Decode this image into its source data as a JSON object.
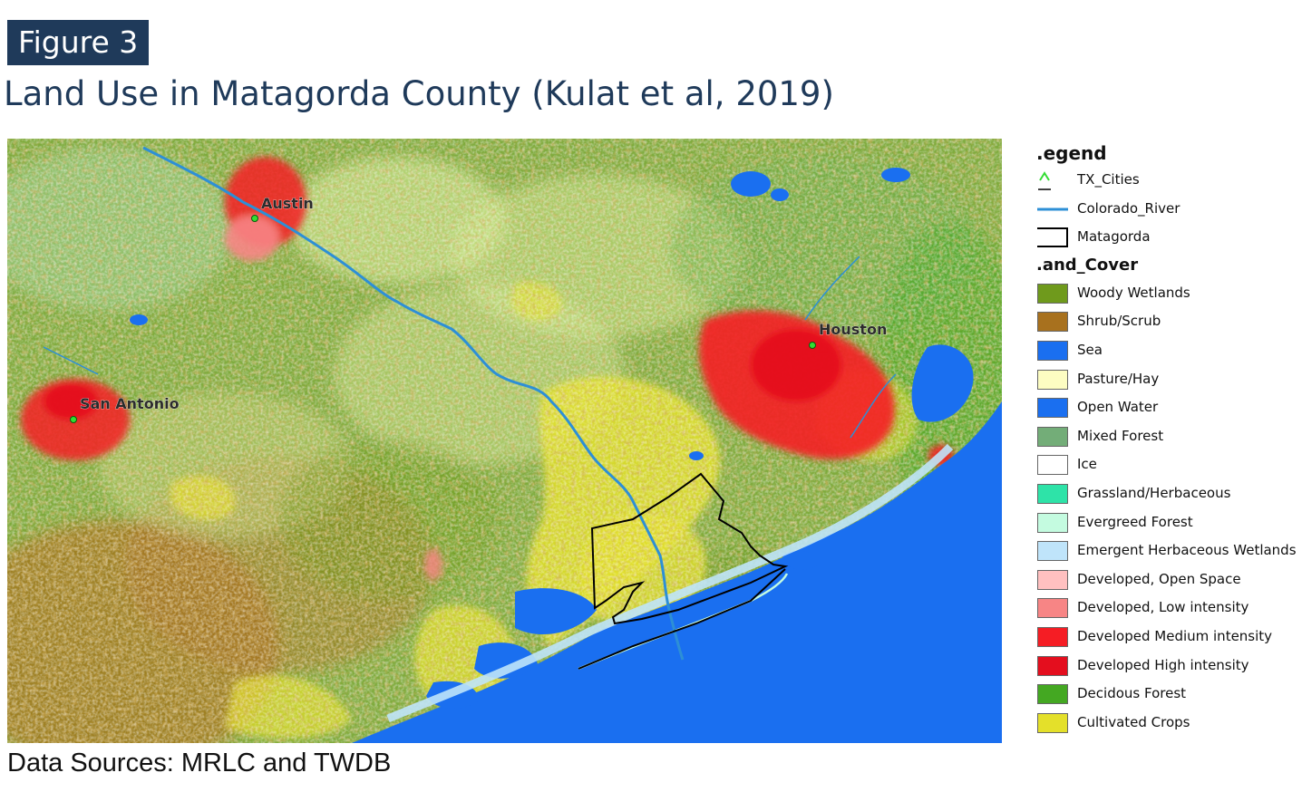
{
  "figure_label": "Figure 3",
  "title": "Land Use in Matagorda County (Kulat et al, 2019)",
  "source": "Data Sources:  MRLC and TWDB",
  "colors": {
    "badge_bg": "#1f3a5a",
    "title": "#1f3a5a",
    "sea": "#1a6ff0",
    "river": "#2d8fd6",
    "boundary": "#000000"
  },
  "cities": [
    {
      "name": "Austin"
    },
    {
      "name": "Houston"
    },
    {
      "name": "San Antonio"
    }
  ],
  "legend": {
    "title": ".egend",
    "layers": [
      {
        "label": "TX_Cities",
        "icon": "city-marker-icon",
        "color": "#33dd33"
      },
      {
        "label": "Colorado_River",
        "icon": "river-line-icon",
        "color": "#2d8fd6"
      },
      {
        "label": "Matagorda",
        "icon": "boundary-outline-icon",
        "color": "#000000"
      }
    ],
    "land_cover_title": ".and_Cover",
    "land_cover": [
      {
        "label": "Woody Wetlands",
        "color": "#6f9a1c"
      },
      {
        "label": "Shrub/Scrub",
        "color": "#a8711e"
      },
      {
        "label": "Sea",
        "color": "#1a6ff0"
      },
      {
        "label": "Pasture/Hay",
        "color": "#fdfdc2"
      },
      {
        "label": "Open Water",
        "color": "#1a6ff0"
      },
      {
        "label": "Mixed Forest",
        "color": "#73ad78"
      },
      {
        "label": "Ice",
        "color": "#ffffff"
      },
      {
        "label": "Grassland/Herbaceous",
        "color": "#2ee3a8"
      },
      {
        "label": "Evergreed Forest",
        "color": "#c4fbe0"
      },
      {
        "label": "Emergent Herbaceous Wetlands",
        "color": "#bfe4fa"
      },
      {
        "label": "Developed, Open Space",
        "color": "#ffc0c0"
      },
      {
        "label": "Developed, Low intensity",
        "color": "#f78585"
      },
      {
        "label": "Developed Medium intensity",
        "color": "#f51d24"
      },
      {
        "label": "Developed High intensity",
        "color": "#e40e1e"
      },
      {
        "label": "Decidous Forest",
        "color": "#44a822"
      },
      {
        "label": "Cultivated Crops",
        "color": "#e4e02a"
      }
    ]
  }
}
